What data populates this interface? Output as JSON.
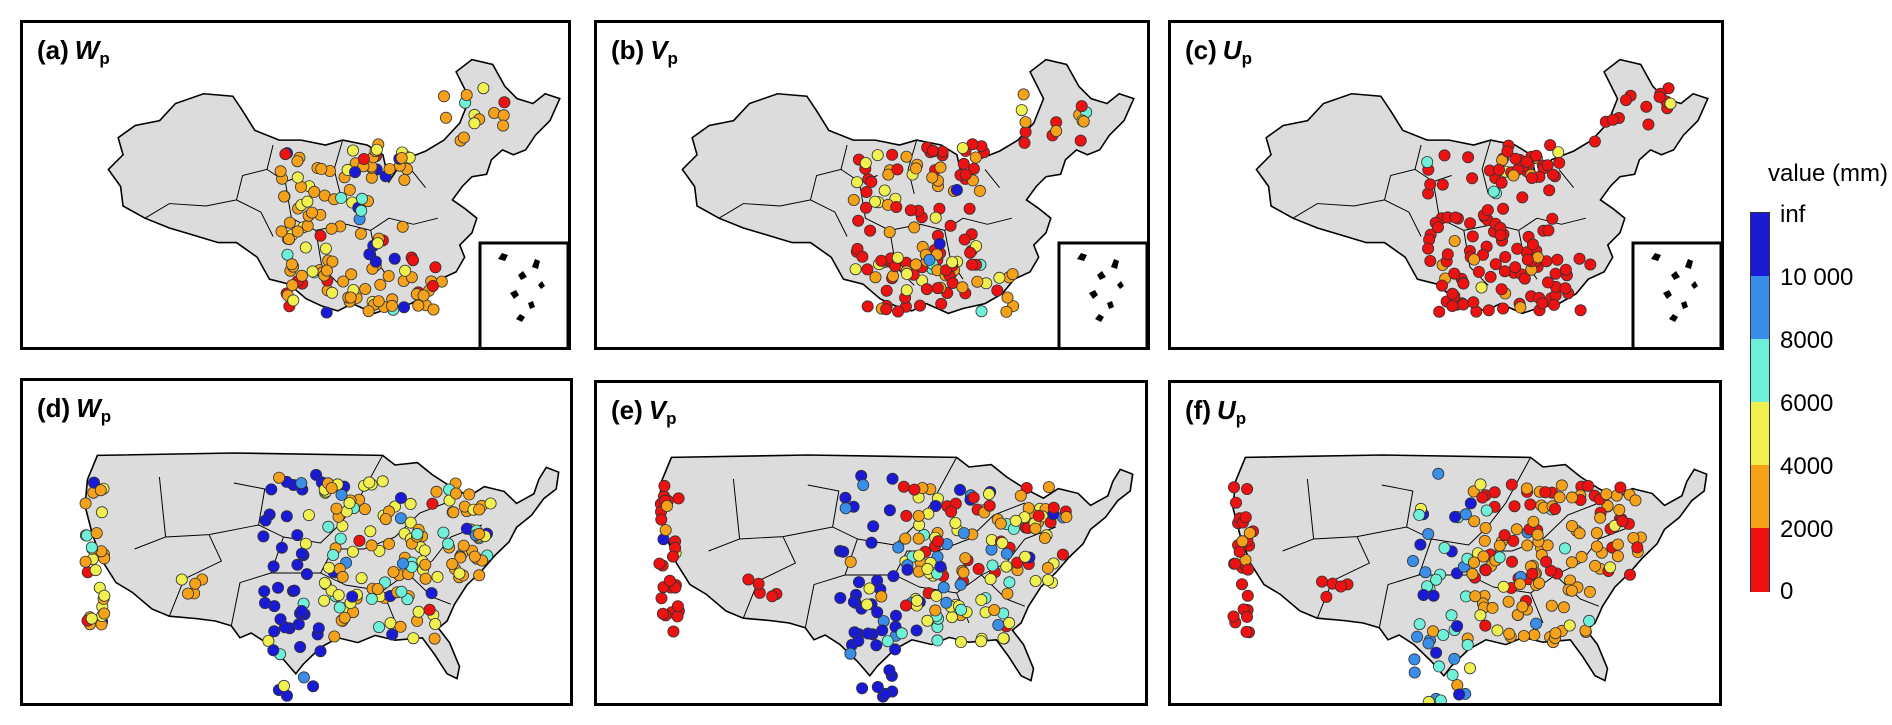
{
  "panels": [
    {
      "id": "a",
      "letter": "(a)",
      "variable": "W",
      "subscript": "p",
      "region": "china"
    },
    {
      "id": "b",
      "letter": "(b)",
      "variable": "V",
      "subscript": "p",
      "region": "china"
    },
    {
      "id": "c",
      "letter": "(c)",
      "variable": "U",
      "subscript": "p",
      "region": "china"
    },
    {
      "id": "d",
      "letter": "(d)",
      "variable": "W",
      "subscript": "p",
      "region": "usa"
    },
    {
      "id": "e",
      "letter": "(e)",
      "variable": "V",
      "subscript": "p",
      "region": "usa"
    },
    {
      "id": "f",
      "letter": "(f)",
      "variable": "U",
      "subscript": "p",
      "region": "usa"
    }
  ],
  "legend": {
    "title": "value (mm)",
    "ticks": [
      "inf",
      "10 000",
      "8000",
      "6000",
      "4000",
      "2000",
      "0"
    ],
    "colors": [
      "#1a1ad6",
      "#3a8ee8",
      "#6ff0d8",
      "#f0f050",
      "#f5a21a",
      "#ee1111"
    ]
  },
  "colors": {
    "land": "#dcdcdc",
    "border": "#000000",
    "marker_edge": "#333333"
  }
}
